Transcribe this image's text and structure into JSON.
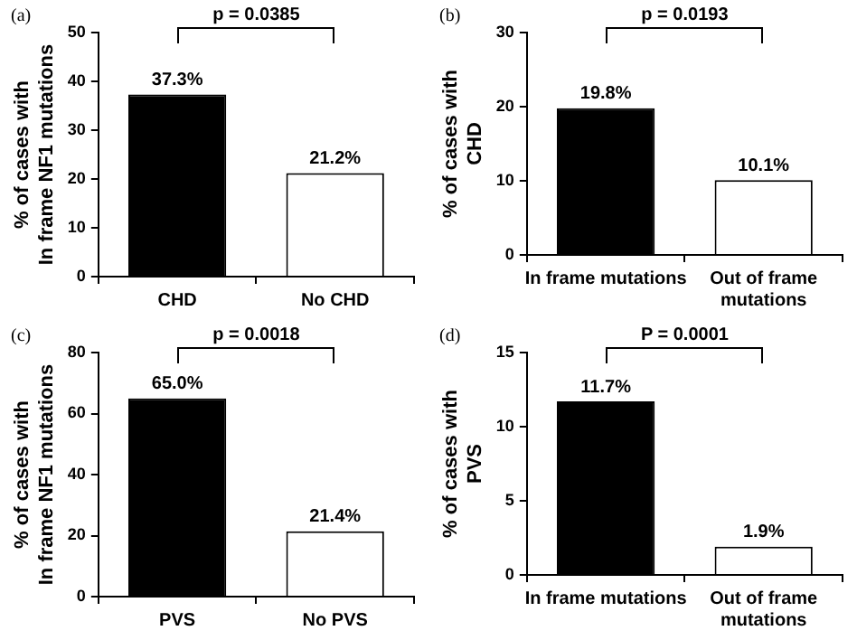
{
  "chart_data": [
    {
      "type": "bar",
      "title": "(a)",
      "ylabel": "% of cases with\nIn frame NF1 mutations",
      "categories": [
        "CHD",
        "No CHD"
      ],
      "values": [
        37.3,
        21.2
      ],
      "colors": [
        "#000000",
        "#ffffff"
      ],
      "value_labels": [
        "37.3%",
        "21.2%"
      ],
      "ylim": [
        0,
        50
      ],
      "yticks": [
        0,
        10,
        20,
        30,
        40,
        50
      ],
      "grid": false,
      "legend": false,
      "annotations": [
        "p = 0.0385"
      ]
    },
    {
      "type": "bar",
      "title": "(b)",
      "ylabel": "% of cases with\nCHD",
      "categories": [
        "In frame mutations",
        "Out of frame\nmutations"
      ],
      "values": [
        19.8,
        10.1
      ],
      "colors": [
        "#000000",
        "#ffffff"
      ],
      "value_labels": [
        "19.8%",
        "10.1%"
      ],
      "ylim": [
        0,
        30
      ],
      "yticks": [
        0,
        10,
        20,
        30
      ],
      "grid": false,
      "legend": false,
      "annotations": [
        "p = 0.0193"
      ]
    },
    {
      "type": "bar",
      "title": "(c)",
      "ylabel": "% of cases with\nIn frame NF1 mutations",
      "categories": [
        "PVS",
        "No PVS"
      ],
      "values": [
        65.0,
        21.4
      ],
      "colors": [
        "#000000",
        "#ffffff"
      ],
      "value_labels": [
        "65.0%",
        "21.4%"
      ],
      "ylim": [
        0,
        80
      ],
      "yticks": [
        0,
        20,
        40,
        60,
        80
      ],
      "grid": false,
      "legend": false,
      "annotations": [
        "p = 0.0018"
      ]
    },
    {
      "type": "bar",
      "title": "(d)",
      "ylabel": "% of cases with\nPVS",
      "categories": [
        "In frame mutations",
        "Out of frame\nmutations"
      ],
      "values": [
        11.7,
        1.9
      ],
      "colors": [
        "#000000",
        "#ffffff"
      ],
      "value_labels": [
        "11.7%",
        "1.9%"
      ],
      "ylim": [
        0,
        15
      ],
      "yticks": [
        0,
        5,
        10,
        15
      ],
      "grid": false,
      "legend": false,
      "annotations": [
        "P = 0.0001"
      ]
    }
  ]
}
